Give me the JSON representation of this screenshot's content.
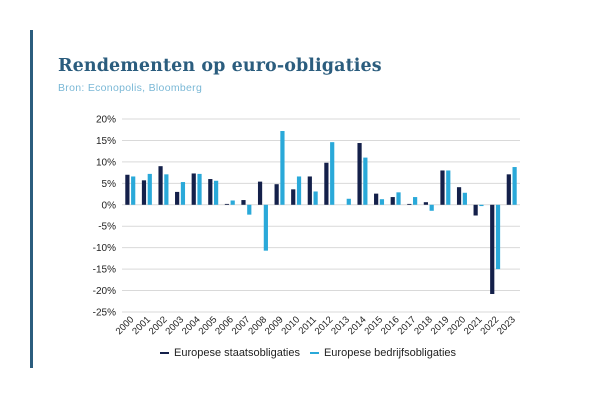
{
  "header": {
    "title": "Rendementen op euro-obligaties",
    "subtitle": "Bron: Econopolis, Bloomberg"
  },
  "colors": {
    "accent": "#2b5d7e",
    "series_gov": "#14204a",
    "series_corp": "#2aa9d9",
    "grid": "#d9d9d9"
  },
  "chart_data": {
    "type": "bar",
    "title": "Rendementen op euro-obligaties",
    "xlabel": "",
    "ylabel": "",
    "ylim": [
      -25,
      20
    ],
    "y_tick_step": 5,
    "y_tick_labels": [
      "20%",
      "15%",
      "10%",
      "5%",
      "0%",
      "-5%",
      "-10%",
      "-15%",
      "-20%",
      "-25%"
    ],
    "grid": true,
    "legend_position": "bottom",
    "categories": [
      "2000",
      "2001",
      "2002",
      "2003",
      "2004",
      "2005",
      "2006",
      "2007",
      "2008",
      "2009",
      "2010",
      "2011",
      "2012",
      "2013",
      "2014",
      "2015",
      "2016",
      "2017",
      "2018",
      "2019",
      "2020",
      "2021",
      "2022",
      "2023"
    ],
    "series": [
      {
        "name": "Europese staatsobligaties",
        "color": "#14204a",
        "values": [
          7.0,
          5.7,
          9.0,
          3.0,
          7.3,
          6.0,
          0.2,
          1.1,
          5.4,
          4.8,
          3.6,
          6.6,
          9.8,
          0.0,
          14.4,
          2.6,
          1.8,
          0.2,
          0.6,
          8.0,
          4.1,
          -2.5,
          -20.8,
          7.1
        ]
      },
      {
        "name": "Europese bedrijfsobligaties",
        "color": "#2aa9d9",
        "values": [
          6.6,
          7.2,
          7.1,
          5.3,
          7.2,
          5.6,
          1.0,
          -2.3,
          -10.7,
          17.2,
          6.6,
          3.1,
          14.6,
          1.4,
          11.0,
          1.3,
          2.9,
          1.8,
          -1.4,
          8.0,
          2.8,
          -0.3,
          -15.0,
          8.8
        ]
      }
    ]
  }
}
